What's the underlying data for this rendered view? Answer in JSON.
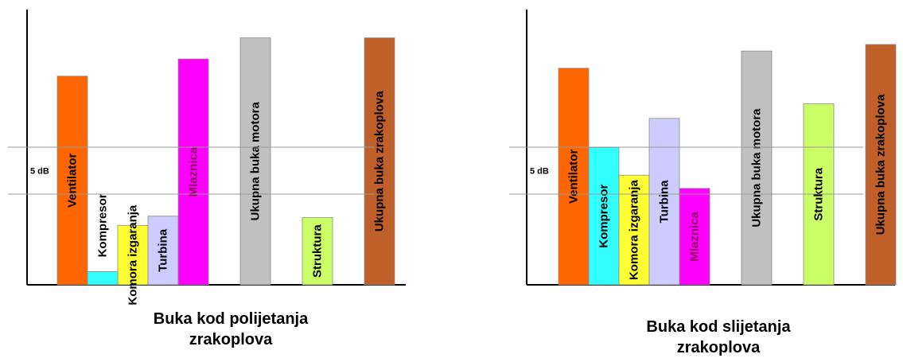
{
  "chart_data": [
    {
      "type": "bar",
      "title_line1": "Buka kod polijetanja",
      "title_line2": "zrakoplova",
      "scale_label": "5 dB",
      "unit": "dB",
      "ylim": [
        0,
        20
      ],
      "categories": [
        "Ventilator",
        "Kompresor",
        "Komora izgaranja",
        "Turbina",
        "Mlaznica",
        "Ukupna buka motora",
        "Struktura",
        "Ukupna buka zrakoplova"
      ],
      "values": [
        15.8,
        1.0,
        4.5,
        5.2,
        17.1,
        18.7,
        5.1,
        18.7
      ],
      "colors": [
        "#ff6600",
        "#33ffff",
        "#ffff33",
        "#ccccff",
        "#ff00ff",
        "#c0c0c0",
        "#ccff66",
        "#bf5f2a"
      ],
      "label_inside": [
        true,
        false,
        true,
        true,
        true,
        true,
        true,
        true
      ],
      "label_color": [
        "#000000",
        "#000000",
        "#000000",
        "#000000",
        "#8b0060",
        "#000000",
        "#000000",
        "#000000"
      ],
      "groups": [
        0,
        0,
        0,
        0,
        0,
        1,
        2,
        3
      ]
    },
    {
      "type": "bar",
      "title_line1": "Buka kod slijetanja",
      "title_line2": "zrakoplova",
      "scale_label": "5 dB",
      "unit": "dB",
      "ylim": [
        0,
        20
      ],
      "categories": [
        "Ventilator",
        "Kompresor",
        "Komora izgaranja",
        "Turbina",
        "Mlaznica",
        "Ukupna buka motora",
        "Struktura",
        "Ukupna buka zrakoplova"
      ],
      "values": [
        16.4,
        10.4,
        8.3,
        12.6,
        7.3,
        17.7,
        13.7,
        18.2
      ],
      "colors": [
        "#ff6600",
        "#33ffff",
        "#ffff33",
        "#ccccff",
        "#ff00ff",
        "#c0c0c0",
        "#ccff66",
        "#bf5f2a"
      ],
      "label_inside": [
        true,
        true,
        true,
        true,
        true,
        true,
        true,
        true
      ],
      "label_color": [
        "#000000",
        "#000000",
        "#000000",
        "#000000",
        "#8b0060",
        "#000000",
        "#000000",
        "#000000"
      ],
      "groups": [
        0,
        0,
        0,
        0,
        0,
        1,
        2,
        3
      ]
    }
  ]
}
